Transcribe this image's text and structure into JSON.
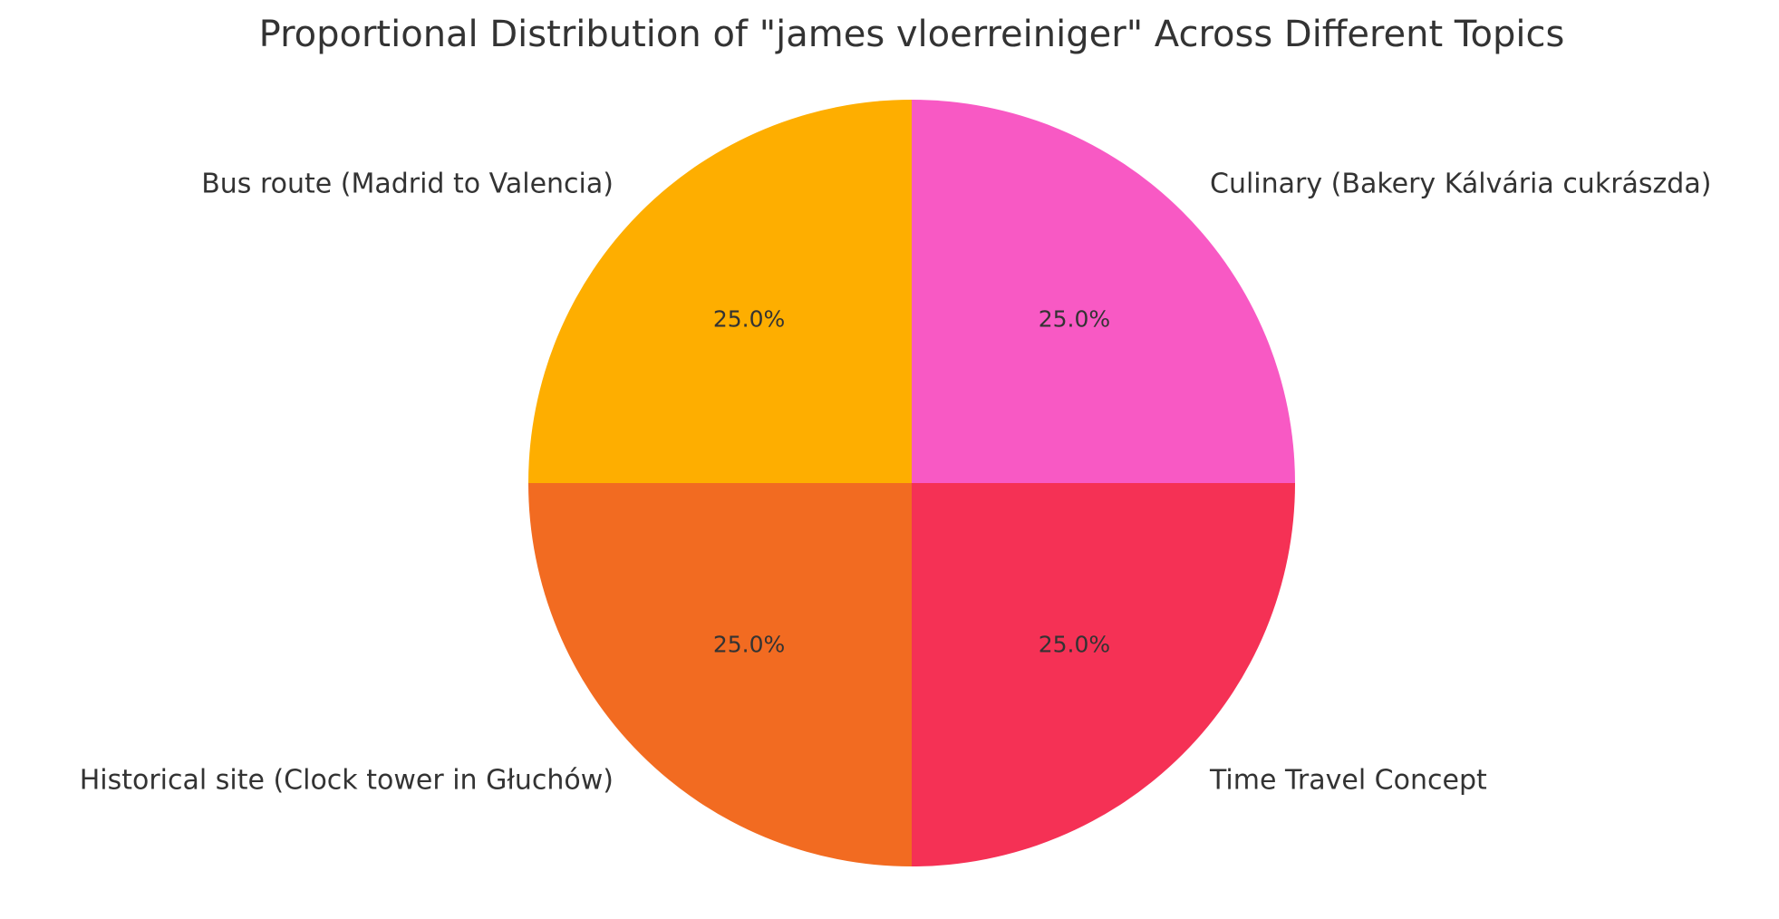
{
  "chart_data": {
    "type": "pie",
    "title": "Proportional Distribution of \"james vloerreiniger\" Across Different Topics",
    "categories": [
      "Bus route (Madrid to Valencia)",
      "Historical site (Clock tower in Głuchów)",
      "Time Travel Concept",
      "Culinary (Bakery Kálvária cukrászda)"
    ],
    "values": [
      25,
      25,
      25,
      25
    ],
    "value_labels": [
      "25.0%",
      "25.0%",
      "25.0%",
      "25.0%"
    ],
    "colors": [
      "#feae00",
      "#f26b21",
      "#f53155",
      "#f859c4"
    ]
  }
}
